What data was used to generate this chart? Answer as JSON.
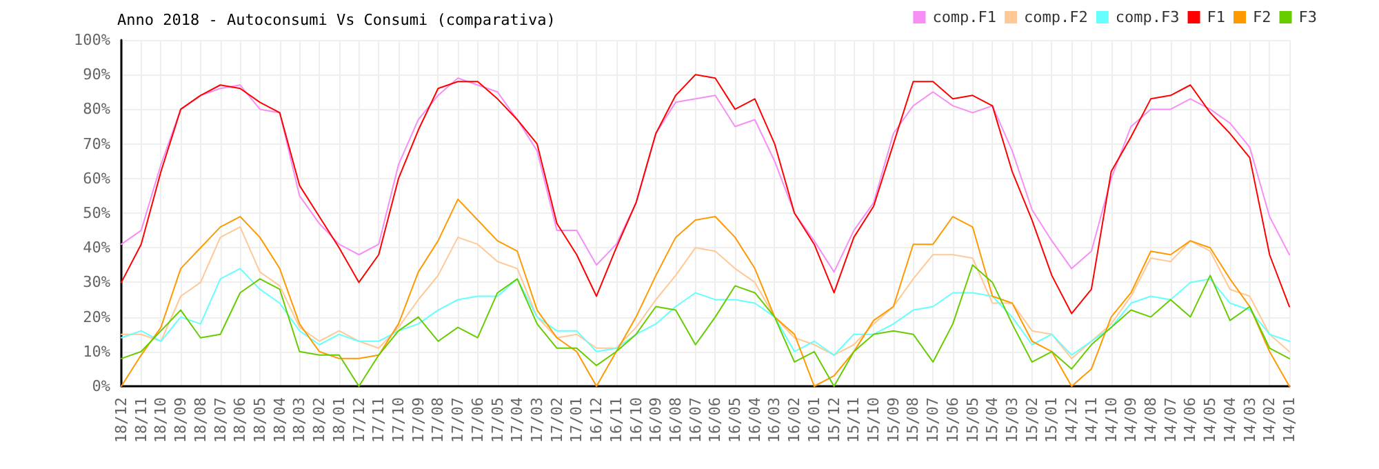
{
  "chart_data": {
    "type": "line",
    "title": "Anno 2018 - Autoconsumi Vs Consumi (comparativa)",
    "categories": [
      "18/12",
      "18/11",
      "18/10",
      "18/09",
      "18/08",
      "18/07",
      "18/06",
      "18/05",
      "18/04",
      "18/03",
      "18/02",
      "18/01",
      "17/12",
      "17/11",
      "17/10",
      "17/09",
      "17/08",
      "17/07",
      "17/06",
      "17/05",
      "17/04",
      "17/03",
      "17/02",
      "17/01",
      "16/12",
      "16/11",
      "16/10",
      "16/09",
      "16/08",
      "16/07",
      "16/06",
      "16/05",
      "16/04",
      "16/03",
      "16/02",
      "16/01",
      "15/12",
      "15/11",
      "15/10",
      "15/09",
      "15/08",
      "15/07",
      "15/06",
      "15/05",
      "15/04",
      "15/03",
      "15/02",
      "15/01",
      "14/12",
      "14/11",
      "14/10",
      "14/09",
      "14/08",
      "14/07",
      "14/06",
      "14/05",
      "14/04",
      "14/03",
      "14/02",
      "14/01"
    ],
    "series": [
      {
        "name": "comp.F1",
        "color": "#f68ef6",
        "values": [
          41,
          45,
          64,
          80,
          84,
          86,
          87,
          80,
          79,
          55,
          47,
          41,
          38,
          41,
          64,
          77,
          84,
          89,
          87,
          85,
          77,
          68,
          45,
          45,
          35,
          41,
          53,
          73,
          82,
          83,
          84,
          75,
          77,
          65,
          50,
          42,
          33,
          45,
          53,
          73,
          81,
          85,
          81,
          79,
          81,
          68,
          51,
          42,
          34,
          39,
          60,
          75,
          80,
          80,
          83,
          80,
          76,
          69,
          49,
          38
        ]
      },
      {
        "name": "comp.F2",
        "color": "#ffc896",
        "values": [
          15,
          15,
          13,
          26,
          30,
          43,
          46,
          33,
          29,
          17,
          13,
          16,
          13,
          11,
          17,
          25,
          32,
          43,
          41,
          36,
          34,
          20,
          14,
          15,
          11,
          11,
          17,
          25,
          32,
          40,
          39,
          34,
          30,
          20,
          14,
          12,
          9,
          12,
          18,
          23,
          31,
          38,
          38,
          37,
          24,
          24,
          16,
          15,
          8,
          13,
          18,
          26,
          37,
          36,
          42,
          39,
          28,
          26,
          15,
          10
        ]
      },
      {
        "name": "comp.F3",
        "color": "#66ffff",
        "values": [
          14,
          16,
          13,
          20,
          18,
          31,
          34,
          28,
          24,
          16,
          12,
          15,
          13,
          13,
          16,
          18,
          22,
          25,
          26,
          26,
          31,
          20,
          16,
          16,
          10,
          11,
          15,
          18,
          23,
          27,
          25,
          25,
          24,
          20,
          10,
          13,
          9,
          15,
          15,
          18,
          22,
          23,
          27,
          27,
          26,
          20,
          12,
          15,
          9,
          13,
          17,
          24,
          26,
          25,
          30,
          31,
          24,
          22,
          15,
          13
        ]
      },
      {
        "name": "F1",
        "color": "#ff0000",
        "values": [
          30,
          41,
          62,
          80,
          84,
          87,
          86,
          82,
          79,
          58,
          49,
          40,
          30,
          38,
          60,
          74,
          86,
          88,
          88,
          83,
          77,
          70,
          47,
          38,
          26,
          40,
          53,
          73,
          84,
          90,
          89,
          80,
          83,
          70,
          50,
          41,
          27,
          43,
          52,
          70,
          88,
          88,
          83,
          84,
          81,
          62,
          48,
          32,
          21,
          28,
          62,
          72,
          83,
          84,
          87,
          79,
          73,
          66,
          38,
          23
        ]
      },
      {
        "name": "F2",
        "color": "#ff9900",
        "values": [
          0,
          9,
          17,
          34,
          40,
          46,
          49,
          43,
          34,
          18,
          10,
          8,
          8,
          9,
          18,
          33,
          42,
          54,
          48,
          42,
          39,
          22,
          14,
          10,
          0,
          10,
          20,
          32,
          43,
          48,
          49,
          43,
          34,
          20,
          15,
          0,
          3,
          10,
          19,
          23,
          41,
          41,
          49,
          46,
          26,
          24,
          13,
          10,
          0,
          5,
          20,
          27,
          39,
          38,
          42,
          40,
          31,
          23,
          10,
          0
        ]
      },
      {
        "name": "F3",
        "color": "#66cc00",
        "values": [
          8,
          10,
          16,
          22,
          14,
          15,
          27,
          31,
          28,
          10,
          9,
          9,
          0,
          9,
          16,
          20,
          13,
          17,
          14,
          27,
          31,
          18,
          11,
          11,
          6,
          10,
          15,
          23,
          22,
          12,
          20,
          29,
          27,
          20,
          7,
          10,
          0,
          10,
          15,
          16,
          15,
          7,
          18,
          35,
          30,
          18,
          7,
          10,
          5,
          12,
          17,
          22,
          20,
          25,
          20,
          32,
          19,
          23,
          11,
          8
        ]
      }
    ],
    "ylim": [
      0,
      100
    ],
    "yticks": [
      {
        "value": 0,
        "label": "0%"
      },
      {
        "value": 10,
        "label": "10%"
      },
      {
        "value": 20,
        "label": "20%"
      },
      {
        "value": 30,
        "label": "30%"
      },
      {
        "value": 40,
        "label": "40%"
      },
      {
        "value": 50,
        "label": "50%"
      },
      {
        "value": 60,
        "label": "60%"
      },
      {
        "value": 70,
        "label": "70%"
      },
      {
        "value": 80,
        "label": "80%"
      },
      {
        "value": 90,
        "label": "90%"
      },
      {
        "value": 100,
        "label": "100%"
      }
    ],
    "grid": true,
    "legend": "top right",
    "marker": "none",
    "line_style": "solid"
  }
}
